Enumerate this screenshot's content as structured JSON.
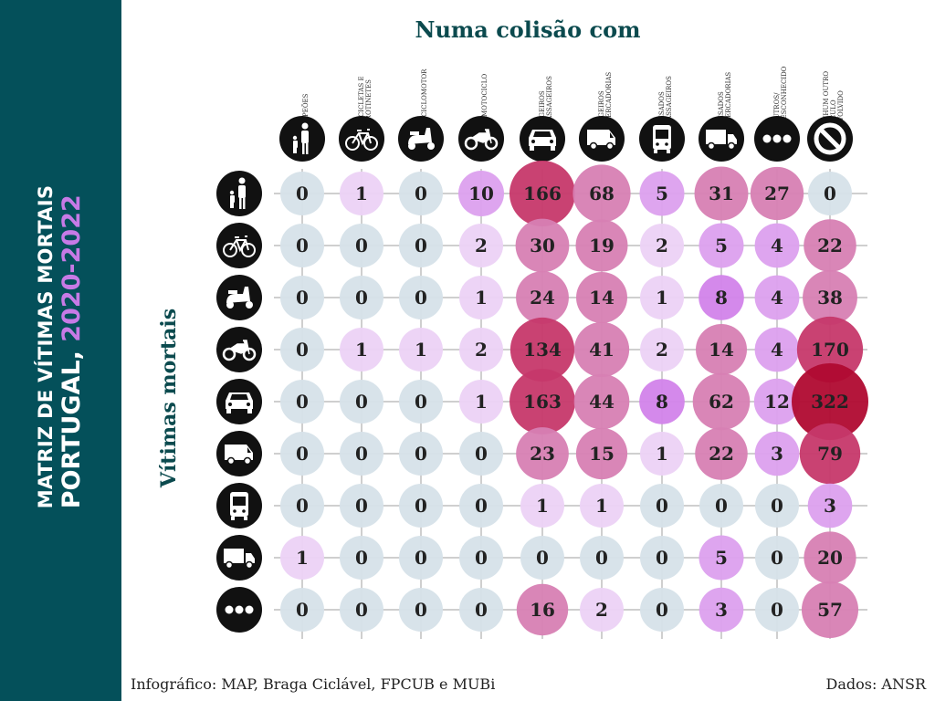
{
  "sidebar": {
    "line1": "MATRIZ DE VÍTIMAS MORTAIS",
    "line2_prefix": "PORTUGAL, ",
    "line2_years": "2020-2022"
  },
  "chart_data": {
    "type": "heatmap",
    "title": "Numa colisão com",
    "ylabel": "Vítimas mortais",
    "columns": [
      "PEÕES",
      "BICICLETAS E\nTROTINETES",
      "CICLOMOTOR",
      "MOTOCICLO",
      "LIGEIROS\nPASSAGEIROS",
      "LIGEIROS\nMERCADORIAS",
      "PESADOS\nPASSAGEIROS",
      "PESADOS\nMERCADORIAS",
      "OUTROS/\nDESCONHECIDO",
      "NENHUM OUTRO\nVEÍCULO\nENVOLVIDO"
    ],
    "column_icons": [
      "pedestrian-icon",
      "bicycle-icon",
      "moped-icon",
      "motorcycle-icon",
      "car-icon",
      "van-icon",
      "bus-icon",
      "truck-icon",
      "more-icon",
      "no-vehicle-icon"
    ],
    "row_icons": [
      "pedestrian-icon",
      "bicycle-icon",
      "moped-icon",
      "motorcycle-icon",
      "car-icon",
      "van-icon",
      "bus-icon",
      "truck-icon",
      "more-icon"
    ],
    "values": [
      [
        0,
        1,
        0,
        10,
        166,
        68,
        5,
        31,
        27,
        0
      ],
      [
        0,
        0,
        0,
        2,
        30,
        19,
        2,
        5,
        4,
        22
      ],
      [
        0,
        0,
        0,
        1,
        24,
        14,
        1,
        8,
        4,
        38
      ],
      [
        0,
        1,
        1,
        2,
        134,
        41,
        2,
        14,
        4,
        170
      ],
      [
        0,
        0,
        0,
        1,
        163,
        44,
        8,
        62,
        12,
        322
      ],
      [
        0,
        0,
        0,
        0,
        23,
        15,
        1,
        22,
        3,
        79
      ],
      [
        0,
        0,
        0,
        0,
        1,
        1,
        0,
        0,
        0,
        3
      ],
      [
        1,
        0,
        0,
        0,
        0,
        0,
        0,
        5,
        0,
        20
      ],
      [
        0,
        0,
        0,
        0,
        16,
        2,
        0,
        3,
        0,
        57
      ]
    ],
    "colors": {
      "zero": "#d6e2e9",
      "low": "#ecd2f5",
      "mid": "#dca0ee",
      "pink": "#d77fb3",
      "high": "#c6386a",
      "max": "#b00a30"
    }
  },
  "footer": {
    "credits": "Infográfico: MAP, Braga Ciclável, FPCUB e MUBi",
    "source": "Dados: ANSR"
  }
}
